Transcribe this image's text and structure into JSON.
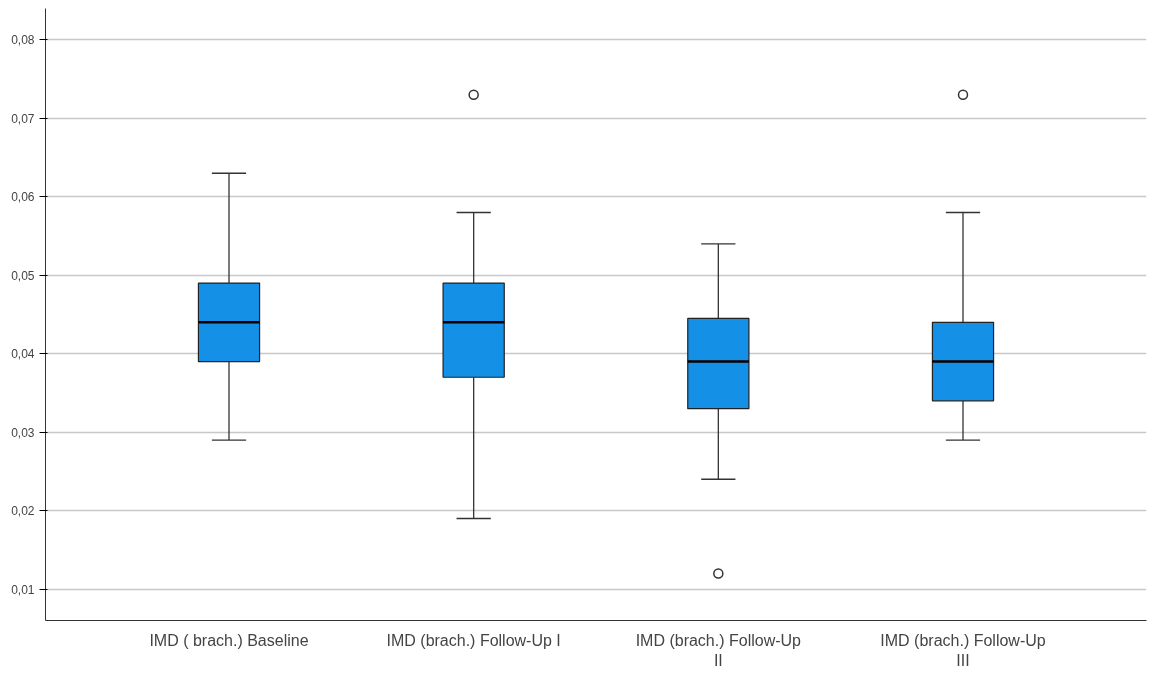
{
  "chart_data": {
    "type": "box",
    "categories": [
      "IMD ( brach.) Baseline",
      "IMD (brach.) Follow-Up I",
      "IMD (brach.) Follow-Up II",
      "IMD (brach.) Follow-Up III"
    ],
    "boxes": [
      {
        "low": 0.029,
        "q1": 0.039,
        "median": 0.044,
        "q3": 0.049,
        "high": 0.063
      },
      {
        "low": 0.019,
        "q1": 0.037,
        "median": 0.044,
        "q3": 0.049,
        "high": 0.058,
        "outliers": [
          0.073
        ]
      },
      {
        "low": 0.024,
        "q1": 0.033,
        "median": 0.039,
        "q3": 0.0445,
        "high": 0.054,
        "outliers": [
          0.012
        ]
      },
      {
        "low": 0.029,
        "q1": 0.034,
        "median": 0.039,
        "q3": 0.044,
        "high": 0.058,
        "outliers": [
          0.073
        ]
      }
    ],
    "color": "#1490e6",
    "ylim": [
      0.006,
      0.084
    ],
    "yticks": [
      {
        "value": 0.01,
        "label": "0,01"
      },
      {
        "value": 0.02,
        "label": "0,02"
      },
      {
        "value": 0.03,
        "label": "0,03"
      },
      {
        "value": 0.04,
        "label": "0,04"
      },
      {
        "value": 0.05,
        "label": "0,05"
      },
      {
        "value": 0.06,
        "label": "0,06"
      },
      {
        "value": 0.07,
        "label": "0,07"
      },
      {
        "value": 0.08,
        "label": "0,08"
      }
    ],
    "grid": "y"
  }
}
